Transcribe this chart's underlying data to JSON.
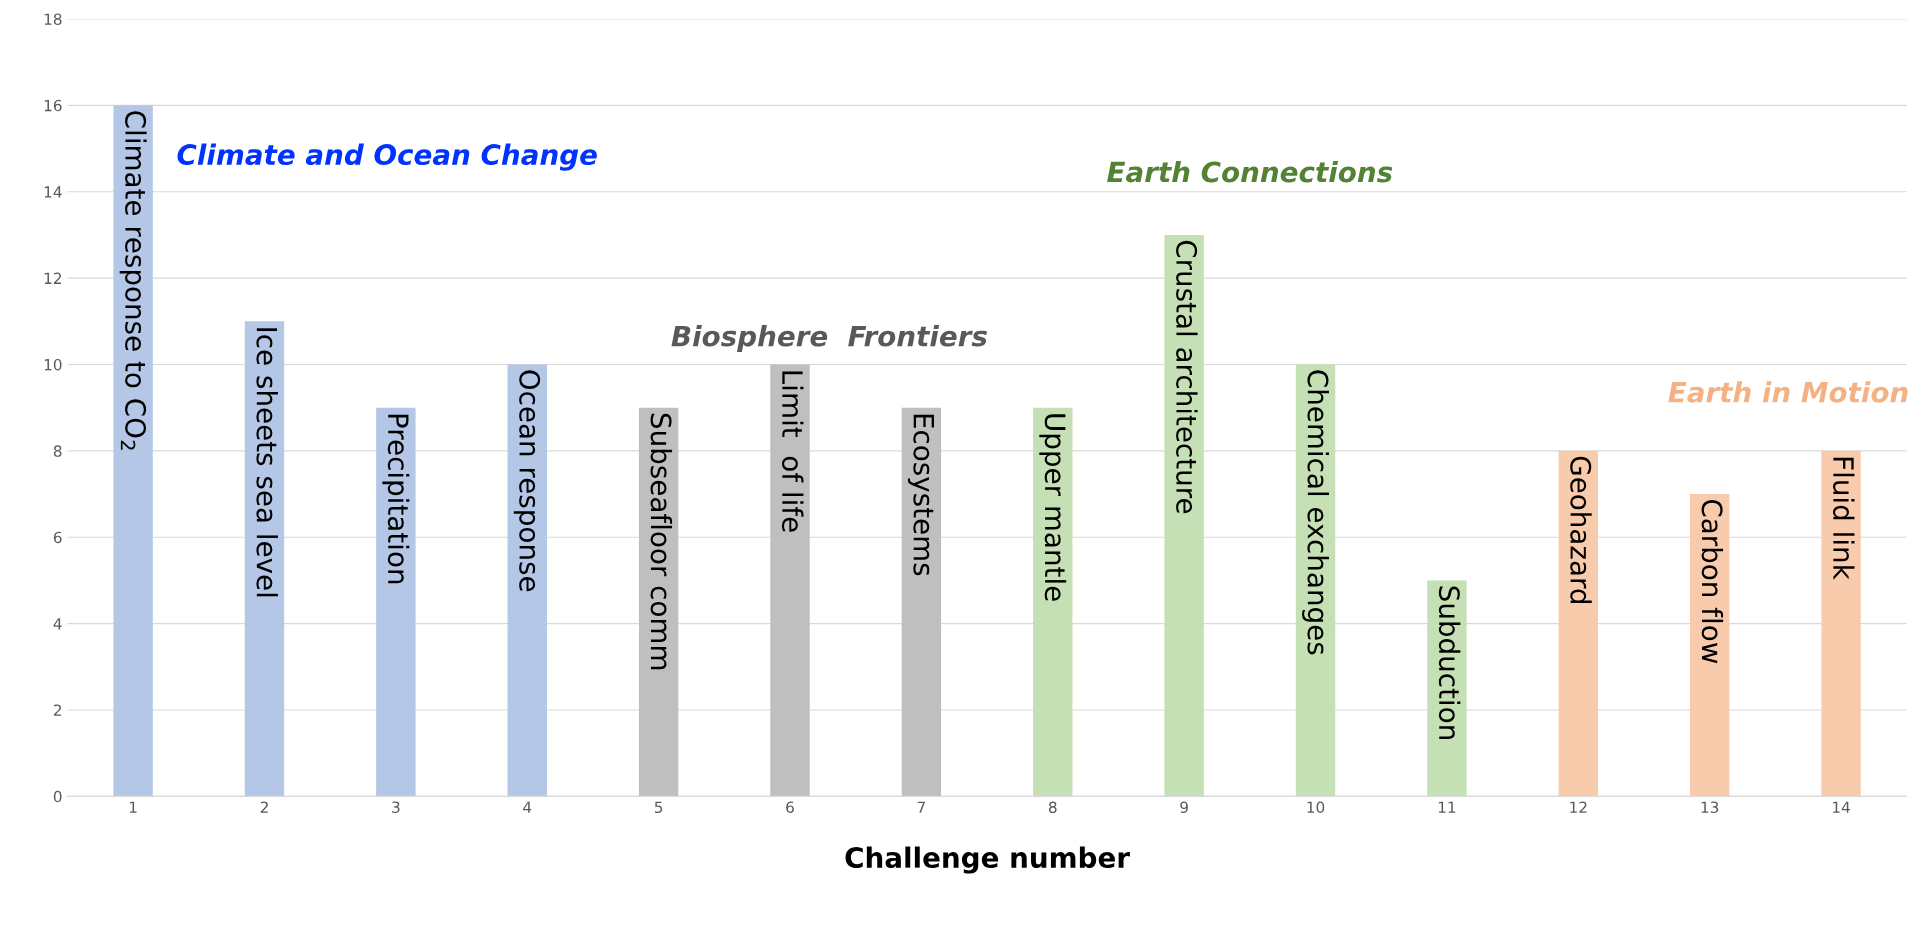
{
  "chart_data": {
    "type": "bar",
    "xlabel": "Challenge number",
    "categories": [
      "1",
      "2",
      "3",
      "4",
      "5",
      "6",
      "7",
      "8",
      "9",
      "10",
      "11",
      "12",
      "13",
      "14"
    ],
    "values": [
      16,
      11,
      9,
      10,
      9,
      10,
      9,
      9,
      13,
      10,
      5,
      8,
      7,
      8
    ],
    "colors": [
      "#b4c7e7",
      "#b4c7e7",
      "#b4c7e7",
      "#b4c7e7",
      "#bfbfbf",
      "#bfbfbf",
      "#bfbfbf",
      "#c5e0b4",
      "#c5e0b4",
      "#c5e0b4",
      "#c5e0b4",
      "#f8cbad",
      "#f8cbad",
      "#f8cbad"
    ],
    "ylim": [
      0,
      18
    ],
    "yticks": [
      0,
      2,
      4,
      6,
      8,
      10,
      12,
      14,
      16,
      18
    ],
    "grid": "y",
    "annotations": [
      {
        "text": "Climate response to CO$_{2}$",
        "x": "1",
        "y": 16
      },
      {
        "text": "Ice sheets sea level",
        "x": "2",
        "y": 11
      },
      {
        "text": "Precipitation",
        "x": "3",
        "y": 9
      },
      {
        "text": "Ocean response",
        "x": "4",
        "y": 10
      },
      {
        "text": "Subseafloor comm",
        "x": "5",
        "y": 9
      },
      {
        "text": "Limit  of life",
        "x": "6",
        "y": 10
      },
      {
        "text": "Ecosystems",
        "x": "7",
        "y": 9
      },
      {
        "text": "Upper mantle",
        "x": "8",
        "y": 9
      },
      {
        "text": "Crustal architecture",
        "x": "9",
        "y": 13
      },
      {
        "text": "Chemical exchanges",
        "x": "10",
        "y": 10
      },
      {
        "text": "Subduction",
        "x": "11",
        "y": 5
      },
      {
        "text": "Geohazard",
        "x": "12",
        "y": 8
      },
      {
        "text": "Carbon flow",
        "x": "13",
        "y": 7
      },
      {
        "text": "Fluid link",
        "x": "14",
        "y": 8
      },
      "Climate and Ocean Change",
      "Biosphere  Frontiers",
      "Earth Connections",
      "Earth in Motion"
    ]
  }
}
